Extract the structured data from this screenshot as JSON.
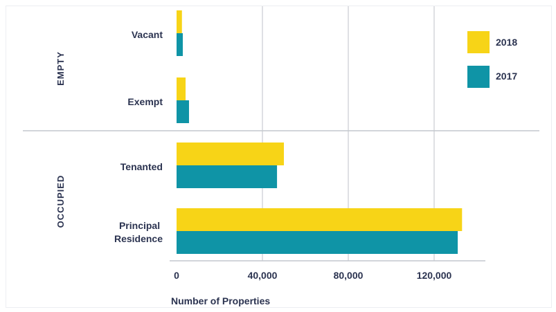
{
  "chart_data": {
    "type": "bar",
    "orientation": "horizontal",
    "xlabel": "Number of Properties",
    "xlim": [
      0,
      135000
    ],
    "xticks": [
      0,
      40000,
      80000,
      120000
    ],
    "xtick_labels": [
      "0",
      "40,000",
      "80,000",
      "120,000"
    ],
    "grid": true,
    "legend_position": "top-right",
    "groups": [
      {
        "name": "EMPTY",
        "categories": [
          "Vacant",
          "Exempt"
        ]
      },
      {
        "name": "OCCUPIED",
        "categories": [
          "Tenanted",
          "Principal Residence"
        ]
      }
    ],
    "categories": [
      "Vacant",
      "Exempt",
      "Tenanted",
      "Principal Residence"
    ],
    "series": [
      {
        "name": "2018",
        "color": "#f7d417",
        "values": [
          2500,
          4200,
          50000,
          133000
        ]
      },
      {
        "name": "2017",
        "color": "#0f94a6",
        "values": [
          2900,
          5800,
          46800,
          131000
        ]
      }
    ]
  }
}
